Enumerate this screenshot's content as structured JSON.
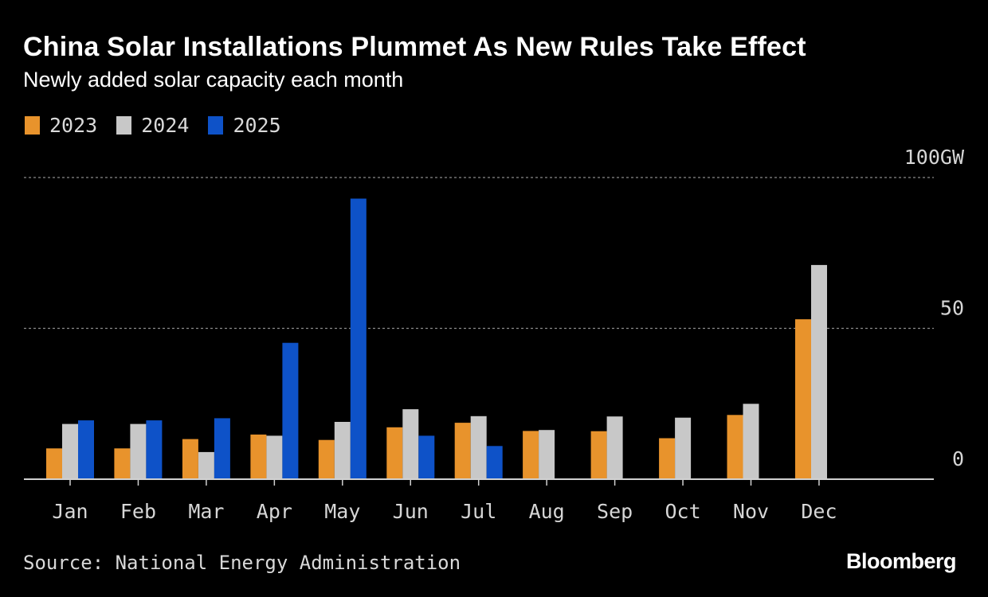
{
  "header": {
    "title": "China Solar Installations Plummet As New Rules Take Effect",
    "subtitle": "Newly added solar capacity each month"
  },
  "legend": [
    {
      "label": "2023",
      "color": "#e8932c"
    },
    {
      "label": "2024",
      "color": "#c8c8c8"
    },
    {
      "label": "2025",
      "color": "#0e52c8"
    }
  ],
  "footer": {
    "source": "Source: National Energy Administration",
    "brand": "Bloomberg"
  },
  "chart_data": {
    "type": "bar",
    "title": "China Solar Installations Plummet As New Rules Take Effect",
    "subtitle": "Newly added solar capacity each month",
    "categories": [
      "Jan",
      "Feb",
      "Mar",
      "Apr",
      "May",
      "Jun",
      "Jul",
      "Aug",
      "Sep",
      "Oct",
      "Nov",
      "Dec"
    ],
    "series": [
      {
        "name": "2023",
        "color": "#e8932c",
        "values": [
          10.2,
          10.2,
          13.3,
          14.8,
          13.0,
          17.2,
          18.7,
          16.0,
          15.9,
          13.6,
          21.3,
          53.0
        ]
      },
      {
        "name": "2024",
        "color": "#c8c8c8",
        "values": [
          18.3,
          18.3,
          9.0,
          14.4,
          19.0,
          23.2,
          20.9,
          16.3,
          20.8,
          20.4,
          25.0,
          71.0
        ]
      },
      {
        "name": "2025",
        "color": "#0e52c8",
        "values": [
          19.5,
          19.5,
          20.2,
          45.2,
          93.0,
          14.4,
          11.0,
          null,
          null,
          null,
          null,
          null
        ]
      }
    ],
    "y_ticks": [
      {
        "value": 0,
        "label": "0"
      },
      {
        "value": 50,
        "label": "50"
      },
      {
        "value": 100,
        "label": "100GW"
      }
    ],
    "ylim": [
      0,
      100
    ],
    "yunit": "GW",
    "grid": true,
    "legend_position": "top-left"
  }
}
